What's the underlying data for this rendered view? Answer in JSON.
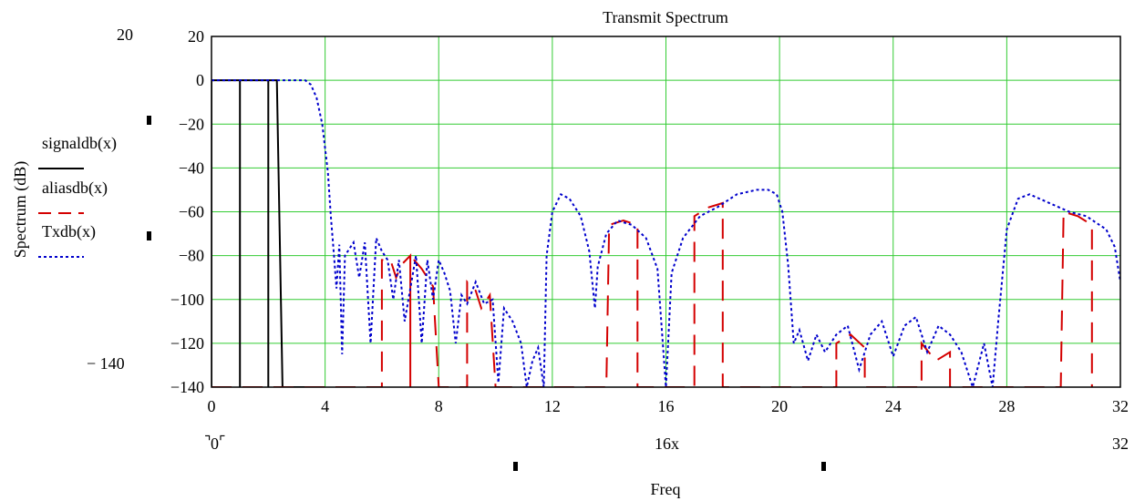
{
  "chart_data": {
    "type": "line",
    "title": "Transmit Spectrum",
    "xlabel": "Freq",
    "ylabel": "Spectrum (dB)",
    "xlim": [
      0,
      32
    ],
    "ylim": [
      -140,
      20
    ],
    "x_ticks": [
      0,
      4,
      8,
      12,
      16,
      20,
      24,
      28,
      32
    ],
    "y_ticks": [
      20,
      0,
      -20,
      -40,
      -60,
      -80,
      -100,
      -120,
      -140
    ],
    "grid": true,
    "y_range_labels": {
      "top": "20",
      "bottom": "− 140"
    },
    "x_range_labels": {
      "left": "0",
      "mid": "16x",
      "right": "32"
    },
    "series": [
      {
        "name": "signaldb(x)",
        "color": "#000000",
        "style": "solid",
        "points": [
          [
            0,
            -140
          ],
          [
            0,
            0
          ],
          [
            1,
            0
          ],
          [
            1,
            -140
          ],
          [
            1,
            0
          ],
          [
            1.5,
            0
          ],
          [
            2,
            0
          ],
          [
            2,
            -140
          ],
          [
            2,
            0
          ],
          [
            2.3,
            0
          ],
          [
            2.5,
            -140
          ],
          [
            3.5,
            -140
          ]
        ]
      },
      {
        "name": "aliasdb(x)",
        "color": "#d40000",
        "style": "dash",
        "points": [
          [
            0,
            -140
          ],
          [
            3.5,
            -140
          ],
          [
            6,
            -140
          ],
          [
            6,
            -82
          ],
          [
            6.3,
            -82
          ],
          [
            6.5,
            -90
          ],
          [
            6.7,
            -84
          ],
          [
            7,
            -80
          ],
          [
            7,
            -140
          ],
          [
            7,
            -80
          ],
          [
            7.4,
            -86
          ],
          [
            7.8,
            -94
          ],
          [
            8,
            -140
          ],
          [
            9,
            -140
          ],
          [
            9,
            -92
          ],
          [
            9.3,
            -96
          ],
          [
            9.5,
            -104
          ],
          [
            9.8,
            -98
          ],
          [
            10,
            -140
          ],
          [
            13.9,
            -140
          ],
          [
            14,
            -66
          ],
          [
            14.5,
            -64
          ],
          [
            15,
            -66
          ],
          [
            15,
            -140
          ],
          [
            17,
            -140
          ],
          [
            17,
            -62
          ],
          [
            17.5,
            -58
          ],
          [
            18,
            -56
          ],
          [
            18,
            -140
          ],
          [
            22,
            -140
          ],
          [
            22,
            -120
          ],
          [
            22.5,
            -116
          ],
          [
            23,
            -122
          ],
          [
            23,
            -140
          ],
          [
            25,
            -140
          ],
          [
            25,
            -120
          ],
          [
            25.5,
            -128
          ],
          [
            26,
            -124
          ],
          [
            26,
            -140
          ],
          [
            29.9,
            -140
          ],
          [
            30,
            -60
          ],
          [
            30.5,
            -62
          ],
          [
            31,
            -66
          ],
          [
            31,
            -140
          ]
        ]
      },
      {
        "name": "Txdb(x)",
        "color": "#0000cc",
        "style": "dot",
        "points": [
          [
            0,
            0
          ],
          [
            1,
            0
          ],
          [
            2,
            0
          ],
          [
            3,
            0
          ],
          [
            3.3,
            0
          ],
          [
            3.5,
            -2
          ],
          [
            3.7,
            -8
          ],
          [
            3.9,
            -20
          ],
          [
            4.1,
            -42
          ],
          [
            4.2,
            -62
          ],
          [
            4.3,
            -78
          ],
          [
            4.4,
            -95
          ],
          [
            4.5,
            -75
          ],
          [
            4.6,
            -125
          ],
          [
            4.7,
            -80
          ],
          [
            5,
            -74
          ],
          [
            5.2,
            -90
          ],
          [
            5.4,
            -74
          ],
          [
            5.6,
            -120
          ],
          [
            5.8,
            -72
          ],
          [
            6,
            -78
          ],
          [
            6.2,
            -82
          ],
          [
            6.4,
            -100
          ],
          [
            6.6,
            -82
          ],
          [
            6.8,
            -110
          ],
          [
            7.2,
            -80
          ],
          [
            7.4,
            -120
          ],
          [
            7.6,
            -82
          ],
          [
            7.8,
            -100
          ],
          [
            8,
            -82
          ],
          [
            8.2,
            -88
          ],
          [
            8.4,
            -96
          ],
          [
            8.6,
            -120
          ],
          [
            8.8,
            -98
          ],
          [
            9,
            -102
          ],
          [
            9.3,
            -92
          ],
          [
            9.6,
            -102
          ],
          [
            9.9,
            -100
          ],
          [
            10.1,
            -138
          ],
          [
            10.3,
            -104
          ],
          [
            10.6,
            -110
          ],
          [
            10.9,
            -120
          ],
          [
            11.1,
            -140
          ],
          [
            11.3,
            -128
          ],
          [
            11.5,
            -122
          ],
          [
            11.7,
            -140
          ],
          [
            11.8,
            -80
          ],
          [
            12,
            -60
          ],
          [
            12.3,
            -52
          ],
          [
            12.6,
            -54
          ],
          [
            13,
            -62
          ],
          [
            13.3,
            -78
          ],
          [
            13.5,
            -104
          ],
          [
            13.6,
            -85
          ],
          [
            13.9,
            -70
          ],
          [
            14.3,
            -64
          ],
          [
            14.8,
            -66
          ],
          [
            15.3,
            -72
          ],
          [
            15.7,
            -86
          ],
          [
            16,
            -140
          ],
          [
            16.2,
            -88
          ],
          [
            16.6,
            -72
          ],
          [
            17.2,
            -62
          ],
          [
            17.8,
            -58
          ],
          [
            18.5,
            -52
          ],
          [
            19.2,
            -50
          ],
          [
            19.6,
            -50
          ],
          [
            19.9,
            -52
          ],
          [
            20.1,
            -60
          ],
          [
            20.3,
            -84
          ],
          [
            20.5,
            -120
          ],
          [
            20.7,
            -114
          ],
          [
            21,
            -128
          ],
          [
            21.3,
            -116
          ],
          [
            21.6,
            -124
          ],
          [
            22,
            -116
          ],
          [
            22.4,
            -112
          ],
          [
            22.8,
            -132
          ],
          [
            23.2,
            -116
          ],
          [
            23.6,
            -110
          ],
          [
            24,
            -126
          ],
          [
            24.4,
            -112
          ],
          [
            24.8,
            -108
          ],
          [
            25.2,
            -124
          ],
          [
            25.6,
            -112
          ],
          [
            26,
            -116
          ],
          [
            26.4,
            -124
          ],
          [
            26.8,
            -140
          ],
          [
            27.2,
            -120
          ],
          [
            27.5,
            -140
          ],
          [
            27.7,
            -110
          ],
          [
            28,
            -68
          ],
          [
            28.4,
            -54
          ],
          [
            28.8,
            -52
          ],
          [
            29.5,
            -56
          ],
          [
            30.2,
            -60
          ],
          [
            30.8,
            -62
          ],
          [
            31.5,
            -68
          ],
          [
            31.8,
            -76
          ],
          [
            32,
            -92
          ]
        ]
      }
    ]
  }
}
